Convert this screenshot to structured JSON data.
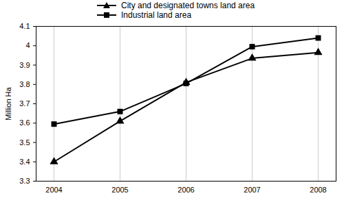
{
  "chart_data": {
    "type": "line",
    "x": [
      2004,
      2005,
      2006,
      2007,
      2008
    ],
    "y_label": "Million Ha",
    "ylim": [
      3.3,
      4.1
    ],
    "yticks": [
      3.3,
      3.4,
      3.5,
      3.6,
      3.7,
      3.8,
      3.9,
      4,
      4.1
    ],
    "grid": true,
    "legend": "top",
    "series": [
      {
        "name": "City and designated towns land area",
        "color": "#000000",
        "marker": "triangle",
        "line_style": "solid",
        "values": [
          3.4,
          3.61,
          3.81,
          3.935,
          3.965
        ]
      },
      {
        "name": "Industrial land area",
        "color": "#000000",
        "marker": "square",
        "line_style": "solid",
        "values": [
          3.595,
          3.66,
          3.805,
          3.995,
          4.04
        ]
      }
    ]
  }
}
